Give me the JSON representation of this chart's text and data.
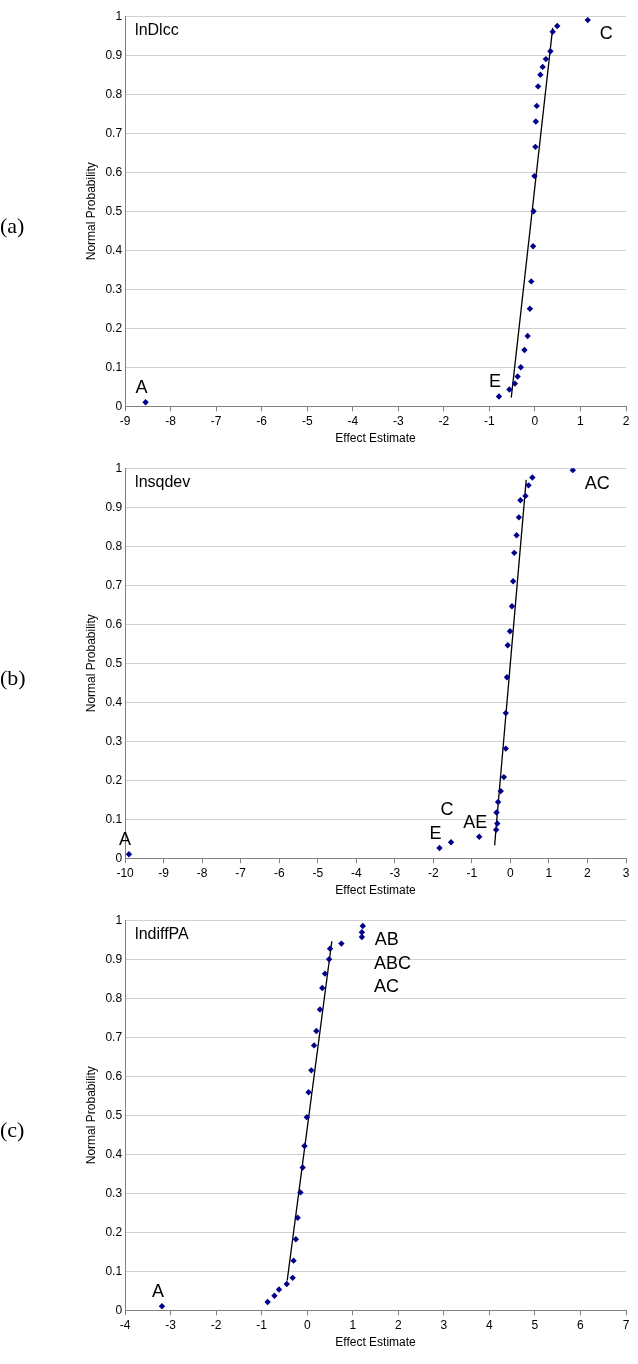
{
  "chart_data": [
    {
      "type": "scatter",
      "title": "lnDlcc",
      "xlabel": "Effect Estimate",
      "ylabel": "Normal Probability",
      "xlim": [
        -9,
        2
      ],
      "xticks": [
        -9,
        -8,
        -7,
        -6,
        -5,
        -4,
        -3,
        -2,
        -1,
        0,
        1,
        2
      ],
      "ylim": [
        0,
        1
      ],
      "yticks": [
        0,
        0.1,
        0.2,
        0.3,
        0.4,
        0.5,
        0.6,
        0.7,
        0.8,
        0.9,
        1
      ],
      "grid": "y",
      "marker": "diamond",
      "annotations": [
        "(a)",
        {
          "text": "A",
          "x": -8.55,
          "y": 0.01
        },
        {
          "text": "E",
          "x": -0.79,
          "y": 0.025
        },
        {
          "text": "C",
          "x": 1.16,
          "y": 0.99
        }
      ],
      "series": [
        {
          "type": "scatter",
          "color": "#00008b",
          "x": [
            -8.55,
            -0.79,
            -0.56,
            -0.44,
            -0.38,
            -0.31,
            -0.23,
            -0.16,
            -0.11,
            -0.08,
            -0.04,
            -0.03,
            -0.01,
            0.01,
            0.02,
            0.04,
            0.07,
            0.12,
            0.17,
            0.24,
            0.34,
            0.39,
            0.49,
            1.16
          ],
          "values": [
            0.01,
            0.025,
            0.043,
            0.058,
            0.076,
            0.1,
            0.144,
            0.18,
            0.25,
            0.32,
            0.41,
            0.5,
            0.59,
            0.665,
            0.73,
            0.77,
            0.82,
            0.85,
            0.87,
            0.89,
            0.91,
            0.96,
            0.975,
            0.99
          ]
        },
        {
          "type": "line",
          "color": "#000000",
          "marker": "none",
          "line_style": "solid",
          "x": [
            -0.52,
            0.39
          ],
          "values": [
            0.022,
            0.97
          ]
        }
      ]
    },
    {
      "type": "scatter",
      "title": "lnsqdev",
      "xlabel": "Effect Estimate",
      "ylabel": "Normal Probability",
      "xlim": [
        -10,
        3
      ],
      "xticks": [
        -10,
        -9,
        -8,
        -7,
        -6,
        -5,
        -4,
        -3,
        -2,
        -1,
        0,
        1,
        2,
        3
      ],
      "ylim": [
        0,
        1
      ],
      "yticks": [
        0,
        0.1,
        0.2,
        0.3,
        0.4,
        0.5,
        0.6,
        0.7,
        0.8,
        0.9,
        1
      ],
      "grid": "y",
      "marker": "diamond",
      "annotations": [
        "(b)",
        {
          "text": "A",
          "x": -9.9,
          "y": 0.01
        },
        {
          "text": "E",
          "x": -1.84,
          "y": 0.026
        },
        {
          "text": "C",
          "x": -1.54,
          "y": 0.041
        },
        {
          "text": "AE",
          "x": -0.81,
          "y": 0.055
        },
        {
          "text": "AC",
          "x": 1.62,
          "y": 0.995
        }
      ],
      "series": [
        {
          "type": "scatter",
          "color": "#00008b",
          "x": [
            -9.9,
            -1.84,
            -1.54,
            -0.81,
            -0.37,
            -0.34,
            -0.36,
            -0.32,
            -0.25,
            -0.17,
            -0.12,
            -0.12,
            -0.09,
            -0.07,
            -0.01,
            0.04,
            0.07,
            0.1,
            0.16,
            0.22,
            0.26,
            0.39,
            0.47,
            0.57,
            1.62
          ],
          "values": [
            0.01,
            0.026,
            0.041,
            0.055,
            0.073,
            0.089,
            0.117,
            0.144,
            0.172,
            0.208,
            0.281,
            0.372,
            0.464,
            0.546,
            0.582,
            0.646,
            0.71,
            0.783,
            0.828,
            0.874,
            0.918,
            0.929,
            0.956,
            0.976,
            0.995
          ]
        },
        {
          "type": "line",
          "color": "#000000",
          "marker": "none",
          "line_style": "solid",
          "x": [
            -0.41,
            0.41
          ],
          "values": [
            0.033,
            0.97
          ]
        }
      ]
    },
    {
      "type": "scatter",
      "title": "lndiffPA",
      "xlabel": "Effect Estimate",
      "ylabel": "Normal Probability",
      "xlim": [
        -4,
        7
      ],
      "xticks": [
        -4,
        -3,
        -2,
        -1,
        0,
        1,
        2,
        3,
        4,
        5,
        6,
        7
      ],
      "ylim": [
        0,
        1
      ],
      "yticks": [
        0,
        0.1,
        0.2,
        0.3,
        0.4,
        0.5,
        0.6,
        0.7,
        0.8,
        0.9,
        1
      ],
      "grid": "y",
      "marker": "diamond",
      "annotations": [
        "(c)",
        {
          "text": "A",
          "x": -3.19,
          "y": 0.01
        },
        {
          "text": "AB",
          "x": 1.22,
          "y": 0.985
        },
        {
          "text": "ABC",
          "x": 1.2,
          "y": 0.969
        },
        {
          "text": "AC",
          "x": 1.2,
          "y": 0.957
        }
      ],
      "series": [
        {
          "type": "scatter",
          "color": "#00008b",
          "x": [
            -3.19,
            -0.87,
            -0.72,
            -0.62,
            -0.45,
            -0.32,
            -0.3,
            -0.25,
            -0.21,
            -0.15,
            -0.1,
            -0.06,
            -0.01,
            0.03,
            0.09,
            0.15,
            0.2,
            0.28,
            0.33,
            0.39,
            0.48,
            0.5,
            0.75,
            1.2,
            1.2,
            1.22
          ],
          "values": [
            0.01,
            0.021,
            0.037,
            0.053,
            0.067,
            0.083,
            0.127,
            0.182,
            0.237,
            0.302,
            0.366,
            0.421,
            0.495,
            0.559,
            0.615,
            0.679,
            0.716,
            0.771,
            0.826,
            0.863,
            0.9,
            0.927,
            0.94,
            0.957,
            0.969,
            0.985
          ]
        },
        {
          "type": "line",
          "color": "#000000",
          "marker": "none",
          "line_style": "solid",
          "x": [
            -0.44,
            0.54
          ],
          "values": [
            0.076,
            0.946
          ]
        }
      ]
    }
  ]
}
